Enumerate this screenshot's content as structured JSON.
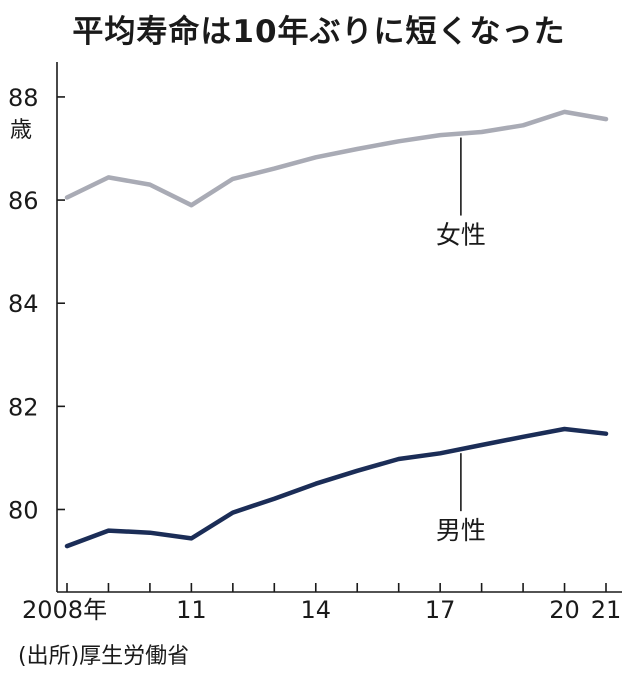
{
  "chart_data": {
    "type": "line",
    "title": "平均寿命は10年ぶりに短くなった",
    "ylabel": "歳",
    "ylim": [
      78.4,
      88.6
    ],
    "yticks": [
      "80",
      "82",
      "84",
      "86",
      "88"
    ],
    "x": [
      2008,
      2009,
      2010,
      2011,
      2012,
      2013,
      2014,
      2015,
      2016,
      2017,
      2018,
      2019,
      2020,
      2021
    ],
    "xtick_labels": [
      {
        "x": 2008,
        "label": "2008年"
      },
      {
        "x": 2011,
        "label": "11"
      },
      {
        "x": 2014,
        "label": "14"
      },
      {
        "x": 2017,
        "label": "17"
      },
      {
        "x": 2020,
        "label": "20"
      },
      {
        "x": 2021,
        "label": "21"
      }
    ],
    "series": [
      {
        "name": "女性",
        "color": "#a9abb5",
        "values": [
          86.05,
          86.44,
          86.3,
          85.9,
          86.41,
          86.61,
          86.83,
          86.99,
          87.14,
          87.26,
          87.32,
          87.45,
          87.71,
          87.57
        ]
      },
      {
        "name": "男性",
        "color": "#1b2d57",
        "values": [
          79.29,
          79.59,
          79.55,
          79.44,
          79.94,
          80.21,
          80.5,
          80.75,
          80.98,
          81.09,
          81.25,
          81.41,
          81.56,
          81.47
        ]
      }
    ],
    "grid": false,
    "source": "(出所)厚生労働省"
  }
}
